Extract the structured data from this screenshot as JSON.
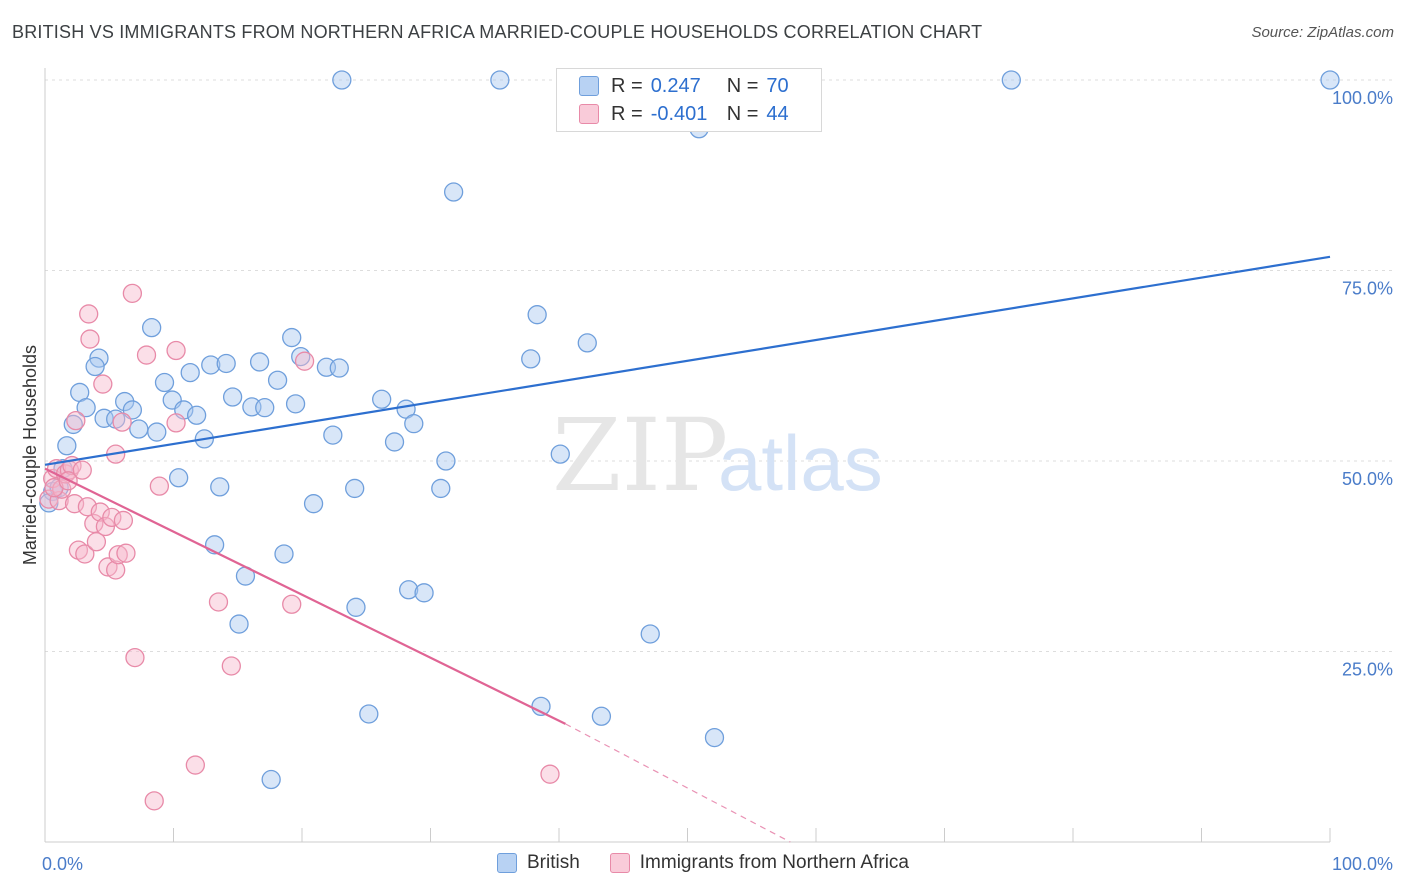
{
  "title": "BRITISH VS IMMIGRANTS FROM NORTHERN AFRICA MARRIED-COUPLE HOUSEHOLDS CORRELATION CHART",
  "source": "Source: ZipAtlas.com",
  "watermark": {
    "zip": "ZIP",
    "atlas": "atlas"
  },
  "colors": {
    "british_fill": "#a9c8f0",
    "british_stroke": "#6f9fdc",
    "british_line": "#2d6fcf",
    "immigrants_fill": "#f6b8cb",
    "immigrants_stroke": "#e88aa8",
    "immigrants_line": "#e06494",
    "tick": "#4a7cc9",
    "grid": "#dddddd"
  },
  "legend_top": {
    "rows": [
      {
        "r_label": "R =",
        "r_value": "0.247",
        "n_label": "N =",
        "n_value": "70"
      },
      {
        "r_label": "R =",
        "r_value": "-0.401",
        "n_label": "N =",
        "n_value": "44"
      }
    ]
  },
  "legend_bottom": [
    "British",
    "Immigrants from Northern Africa"
  ],
  "chart_data": {
    "type": "scatter",
    "title": "BRITISH VS IMMIGRANTS FROM NORTHERN AFRICA MARRIED-COUPLE HOUSEHOLDS CORRELATION CHART",
    "xlabel": "",
    "ylabel": "Married-couple Households",
    "xlim": [
      0,
      100
    ],
    "ylim": [
      0,
      100
    ],
    "x_tick_labels": [
      "0.0%",
      "100.0%"
    ],
    "y_ticks": [
      25,
      50,
      75,
      100
    ],
    "y_tick_labels": [
      "25.0%",
      "50.0%",
      "75.0%",
      "100.0%"
    ],
    "grid": true,
    "legend_position": "bottom",
    "series": [
      {
        "name": "British",
        "r": 0.247,
        "n": 70,
        "trend": {
          "x": [
            0,
            100
          ],
          "y": [
            49.5,
            76.8
          ],
          "dashed_from": null
        },
        "points": [
          [
            0.6,
            46
          ],
          [
            1.1,
            46.5
          ],
          [
            1.4,
            49
          ],
          [
            1.7,
            52
          ],
          [
            2.2,
            54.8
          ],
          [
            2.7,
            59
          ],
          [
            3.2,
            57
          ],
          [
            4.2,
            63.5
          ],
          [
            3.9,
            62.4
          ],
          [
            4.6,
            55.6
          ],
          [
            5.5,
            55.5
          ],
          [
            6.2,
            57.8
          ],
          [
            6.8,
            56.7
          ],
          [
            7.3,
            54.2
          ],
          [
            8.3,
            67.5
          ],
          [
            8.7,
            53.8
          ],
          [
            9.3,
            60.3
          ],
          [
            9.9,
            58
          ],
          [
            10.4,
            47.8
          ],
          [
            10.8,
            56.7
          ],
          [
            11.3,
            61.6
          ],
          [
            11.8,
            56
          ],
          [
            12.4,
            52.9
          ],
          [
            12.9,
            62.6
          ],
          [
            13.2,
            39
          ],
          [
            13.6,
            46.6
          ],
          [
            14.1,
            62.8
          ],
          [
            14.6,
            58.4
          ],
          [
            15.1,
            28.6
          ],
          [
            15.6,
            34.9
          ],
          [
            16.1,
            57.1
          ],
          [
            16.7,
            63
          ],
          [
            17.1,
            57
          ],
          [
            17.6,
            8.2
          ],
          [
            18.1,
            60.6
          ],
          [
            18.6,
            37.8
          ],
          [
            19.2,
            66.2
          ],
          [
            19.5,
            57.5
          ],
          [
            19.9,
            63.7
          ],
          [
            20.9,
            44.4
          ],
          [
            21.9,
            62.3
          ],
          [
            22.4,
            53.4
          ],
          [
            22.9,
            62.2
          ],
          [
            23.1,
            100
          ],
          [
            24.1,
            46.4
          ],
          [
            24.2,
            30.8
          ],
          [
            25.2,
            16.8
          ],
          [
            26.2,
            58.1
          ],
          [
            27.2,
            52.5
          ],
          [
            28.1,
            56.8
          ],
          [
            28.3,
            33.1
          ],
          [
            28.7,
            54.9
          ],
          [
            29.5,
            32.7
          ],
          [
            30.8,
            46.4
          ],
          [
            31.2,
            50
          ],
          [
            31.8,
            85.3
          ],
          [
            35.4,
            100
          ],
          [
            37.8,
            63.4
          ],
          [
            38.3,
            69.2
          ],
          [
            38.6,
            17.8
          ],
          [
            40.1,
            50.9
          ],
          [
            42.2,
            65.5
          ],
          [
            43.3,
            16.5
          ],
          [
            47.1,
            27.3
          ],
          [
            50.4,
            100
          ],
          [
            50.9,
            93.6
          ],
          [
            52.1,
            13.7
          ],
          [
            75.2,
            100
          ],
          [
            100,
            100
          ],
          [
            0.3,
            44.5
          ]
        ]
      },
      {
        "name": "Immigrants from Northern Africa",
        "r": -0.401,
        "n": 44,
        "trend": {
          "x": [
            0,
            40.5
          ],
          "y": [
            49,
            15.5
          ],
          "dashed_to": [
            58,
            0
          ]
        },
        "points": [
          [
            0.3,
            45
          ],
          [
            0.6,
            47.7
          ],
          [
            0.9,
            49
          ],
          [
            1.1,
            44.8
          ],
          [
            1.3,
            46.3
          ],
          [
            1.6,
            48.3
          ],
          [
            1.9,
            48.8
          ],
          [
            2.1,
            49.4
          ],
          [
            2.3,
            44.4
          ],
          [
            2.4,
            55.3
          ],
          [
            2.6,
            38.3
          ],
          [
            2.9,
            48.8
          ],
          [
            3.1,
            37.8
          ],
          [
            3.3,
            44
          ],
          [
            3.4,
            69.3
          ],
          [
            3.5,
            66
          ],
          [
            3.8,
            41.8
          ],
          [
            4,
            39.4
          ],
          [
            4.3,
            43.3
          ],
          [
            4.5,
            60.1
          ],
          [
            4.7,
            41.4
          ],
          [
            4.9,
            36.1
          ],
          [
            5.2,
            42.6
          ],
          [
            5.5,
            35.7
          ],
          [
            5.5,
            50.9
          ],
          [
            5.7,
            37.7
          ],
          [
            6,
            55.1
          ],
          [
            6.1,
            42.2
          ],
          [
            6.3,
            37.9
          ],
          [
            6.8,
            72
          ],
          [
            7,
            24.2
          ],
          [
            7.9,
            63.9
          ],
          [
            8.5,
            5.4
          ],
          [
            8.9,
            46.7
          ],
          [
            10.2,
            55
          ],
          [
            10.2,
            64.5
          ],
          [
            11.7,
            10.1
          ],
          [
            13.5,
            31.5
          ],
          [
            14.5,
            23.1
          ],
          [
            19.2,
            31.2
          ],
          [
            20.2,
            63.1
          ],
          [
            39.3,
            8.9
          ],
          [
            0.7,
            46.5
          ],
          [
            1.8,
            47.4
          ]
        ]
      }
    ]
  }
}
